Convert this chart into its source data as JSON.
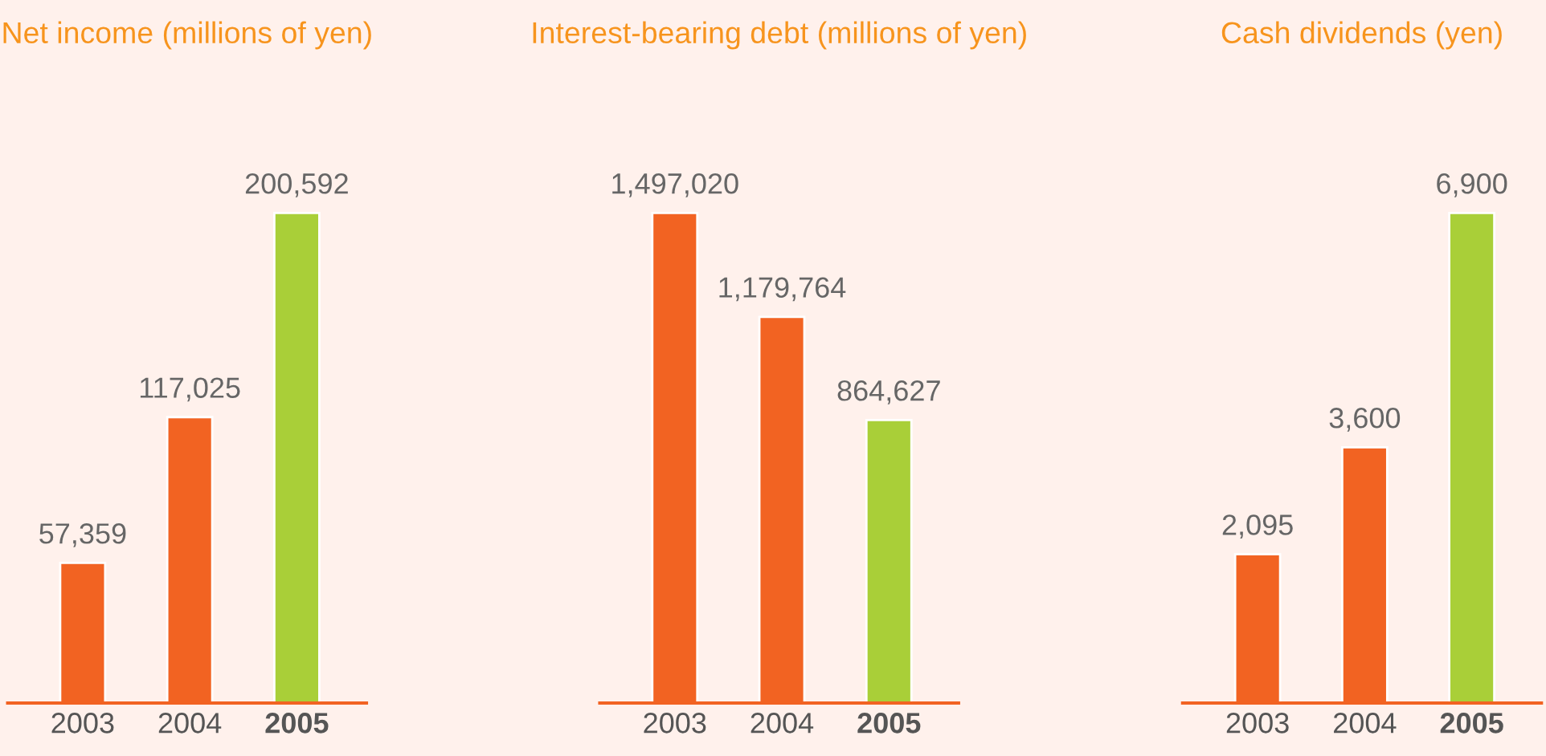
{
  "chart_data": [
    {
      "type": "bar",
      "title": "Net income (millions of yen)",
      "categories": [
        "2003",
        "2004",
        "2005"
      ],
      "values": [
        57359,
        117025,
        200592
      ],
      "colors": [
        "#f26322",
        "#f26322",
        "#a9cf38"
      ],
      "value_labels": [
        "57,359",
        "117,025",
        "200,592"
      ]
    },
    {
      "type": "bar",
      "title": "Interest-bearing debt (millions of yen)",
      "categories": [
        "2003",
        "2004",
        "2005"
      ],
      "values": [
        1497020,
        1179764,
        864627
      ],
      "colors": [
        "#f26322",
        "#f26322",
        "#a9cf38"
      ],
      "value_labels": [
        "1,497,020",
        "1,179,764",
        "864,627"
      ]
    },
    {
      "type": "bar",
      "title": "Cash dividends (yen)",
      "categories": [
        "2003",
        "2004",
        "2005"
      ],
      "values": [
        2095,
        3600,
        6900
      ],
      "colors": [
        "#f26322",
        "#f26322",
        "#a9cf38"
      ],
      "value_labels": [
        "2,095",
        "3,600",
        "6,900"
      ]
    }
  ]
}
